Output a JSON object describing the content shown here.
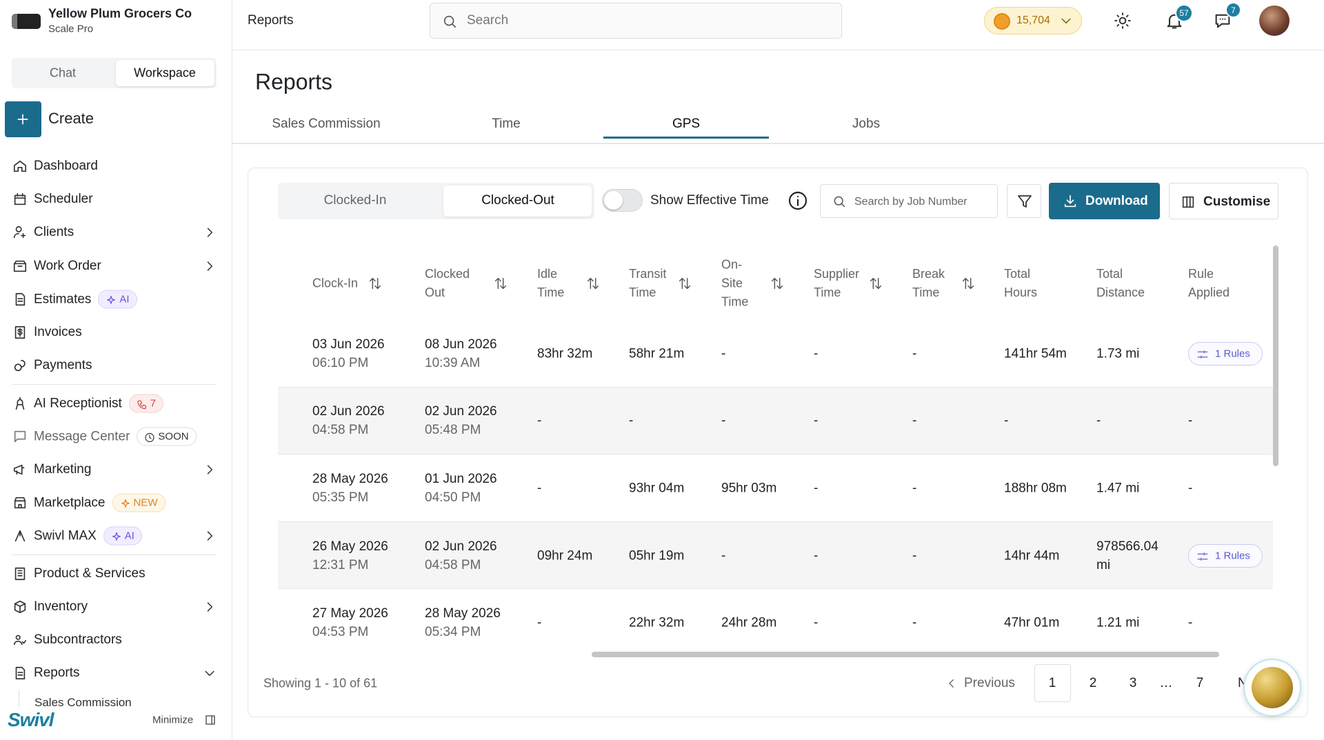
{
  "header": {
    "page": "Reports",
    "search": "Search",
    "coins": "15,704",
    "notifications": "57",
    "messages": "7"
  },
  "sidebar": {
    "company": "Yellow Plum Grocers Co",
    "plan": "Scale Pro",
    "tabs": [
      "Chat",
      "Workspace"
    ],
    "active_tab": 1,
    "create": "Create",
    "nav": [
      {
        "label": "Dashboard"
      },
      {
        "label": "Scheduler"
      },
      {
        "label": "Clients"
      },
      {
        "label": "Work Order"
      },
      {
        "label": "Estimates",
        "badge": "AI"
      },
      {
        "label": "Invoices"
      },
      {
        "label": "Payments"
      },
      {
        "label": "AI Receptionist",
        "badge": "7"
      },
      {
        "label": "Message Center",
        "badge": "SOON"
      },
      {
        "label": "Marketing"
      },
      {
        "label": "Marketplace",
        "badge": "NEW"
      },
      {
        "label": "Swivl MAX",
        "badge": "AI"
      },
      {
        "label": "Product & Services"
      },
      {
        "label": "Inventory"
      },
      {
        "label": "Subcontractors"
      },
      {
        "label": "Reports"
      },
      {
        "label": "Sales Commission"
      }
    ],
    "brand": "Swivl",
    "minimize": "Minimize"
  },
  "main": {
    "title": "Reports",
    "tabs": [
      "Sales Commission",
      "Time",
      "GPS",
      "Jobs"
    ],
    "active_tab": 2,
    "status_tabs": [
      "Clocked-In",
      "Clocked-Out"
    ],
    "active_status": 1,
    "effective_time_label": "Show Effective Time",
    "effective_time": false,
    "search": "Search by Job Number",
    "download": "Download",
    "customise": "Customise"
  },
  "table": {
    "columns": [
      "Clock-In",
      "Clocked Out",
      "Idle Time",
      "Transit Time",
      "On-Site Time",
      "Supplier Time",
      "Break Time",
      "Total Hours",
      "Total Distance",
      "Rule Applied"
    ],
    "rows": [
      [
        [
          "03 Jun 2026",
          "06:10 PM"
        ],
        [
          "08 Jun 2026",
          "10:39 AM"
        ],
        "83hr 32m",
        "58hr 21m",
        "-",
        "-",
        "-",
        "141hr 54m",
        "1.73 mi",
        "1 Rules"
      ],
      [
        [
          "02 Jun 2026",
          "04:58 PM"
        ],
        [
          "02 Jun 2026",
          "05:48 PM"
        ],
        "-",
        "-",
        "-",
        "-",
        "-",
        "-",
        "-",
        "-"
      ],
      [
        [
          "28 May 2026",
          "05:35 PM"
        ],
        [
          "01 Jun 2026",
          "04:50 PM"
        ],
        "-",
        "93hr 04m",
        "95hr 03m",
        "-",
        "-",
        "188hr 08m",
        "1.47 mi",
        "-"
      ],
      [
        [
          "26 May 2026",
          "12:31 PM"
        ],
        [
          "02 Jun 2026",
          "04:58 PM"
        ],
        "09hr 24m",
        "05hr 19m",
        "-",
        "-",
        "-",
        "14hr 44m",
        "978566.04 mi",
        "1 Rules"
      ],
      [
        [
          "27 May 2026",
          "04:53 PM"
        ],
        [
          "28 May 2026",
          "05:34 PM"
        ],
        "-",
        "22hr 32m",
        "24hr 28m",
        "-",
        "-",
        "47hr 01m",
        "1.21 mi",
        "-"
      ]
    ]
  },
  "pagination": {
    "summary": "Showing 1 - 10 of 61",
    "previous": "Previous",
    "pages": [
      "1",
      "2",
      "3",
      "…",
      "7"
    ],
    "current": 0,
    "next": "Next"
  }
}
